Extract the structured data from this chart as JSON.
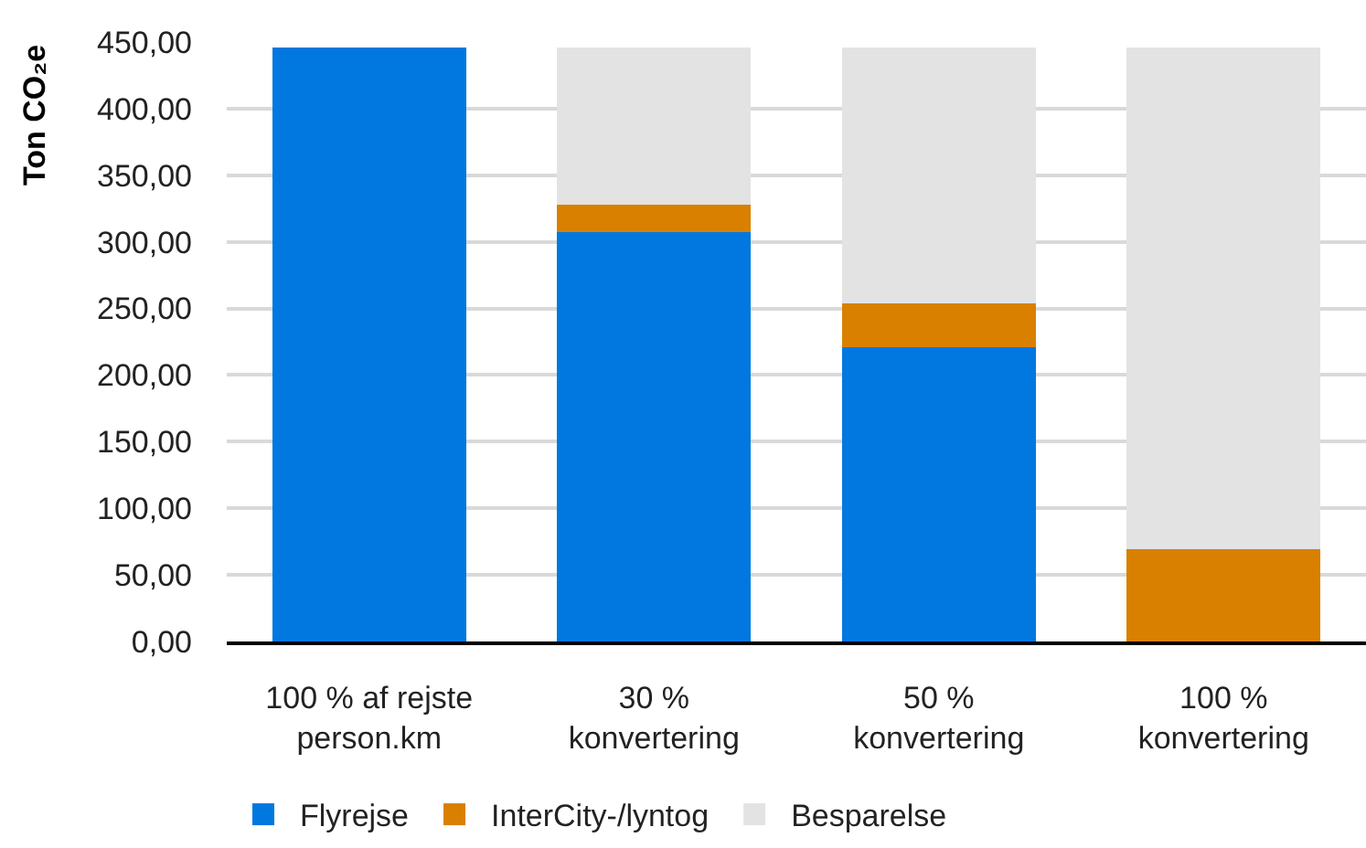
{
  "chart_data": {
    "type": "bar",
    "stacked": true,
    "categories": [
      "100 % af rejste person.km",
      "30 % konvertering",
      "50 % konvertering",
      "100 % konvertering"
    ],
    "series": [
      {
        "name": "Flyrejse",
        "color": "#0078e0",
        "values": [
          446,
          307,
          221,
          0
        ]
      },
      {
        "name": "InterCity-/lyntog",
        "color": "#d98000",
        "values": [
          0,
          21,
          33,
          69
        ]
      },
      {
        "name": "Besparelse",
        "color": "#e3e3e3",
        "values": [
          0,
          118,
          192,
          377
        ]
      }
    ],
    "ylabel": "Ton CO₂e",
    "ylim": [
      0,
      450
    ],
    "yticks": [
      {
        "value": 0,
        "label": "0,00"
      },
      {
        "value": 50,
        "label": "50,00"
      },
      {
        "value": 100,
        "label": "100,00"
      },
      {
        "value": 150,
        "label": "150,00"
      },
      {
        "value": 200,
        "label": "200,00"
      },
      {
        "value": 250,
        "label": "250,00"
      },
      {
        "value": 300,
        "label": "300,00"
      },
      {
        "value": 350,
        "label": "350,00"
      },
      {
        "value": 400,
        "label": "400,00"
      },
      {
        "value": 450,
        "label": "450,00"
      }
    ],
    "grid": "y",
    "legend": "bottom left"
  }
}
